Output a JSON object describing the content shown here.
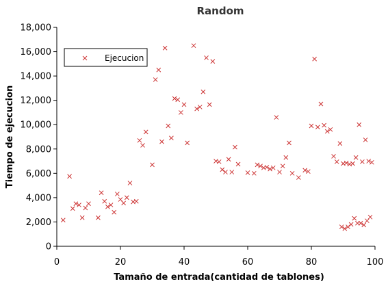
{
  "chart_data": {
    "type": "scatter",
    "title": "Random",
    "xlabel": "Tamaño de entrada(cantidad de tablones)",
    "ylabel": "Tiempo de ejecucion",
    "xlim": [
      0,
      100
    ],
    "ylim": [
      0,
      18000
    ],
    "xticks": [
      0,
      20,
      40,
      60,
      80,
      100
    ],
    "xtick_labels": [
      "0",
      "20",
      "40",
      "60",
      "80",
      "100"
    ],
    "yticks": [
      0,
      2000,
      4000,
      6000,
      8000,
      10000,
      12000,
      14000,
      16000,
      18000
    ],
    "ytick_labels": [
      "0",
      "2,000",
      "4,000",
      "6,000",
      "8,000",
      "10,000",
      "12,000",
      "14,000",
      "16,000",
      "18,000"
    ],
    "grid": false,
    "legend": {
      "position": "top-left"
    },
    "marker": "x",
    "color": "#cc3333",
    "series": [
      {
        "name": "Ejecucion",
        "points": [
          [
            2,
            2150
          ],
          [
            4,
            5750
          ],
          [
            5,
            3100
          ],
          [
            6,
            3500
          ],
          [
            7,
            3400
          ],
          [
            8,
            2350
          ],
          [
            9,
            3150
          ],
          [
            10,
            3500
          ],
          [
            13,
            2350
          ],
          [
            14,
            4400
          ],
          [
            15,
            3700
          ],
          [
            16,
            3250
          ],
          [
            17,
            3400
          ],
          [
            18,
            2800
          ],
          [
            19,
            4300
          ],
          [
            20,
            3850
          ],
          [
            21,
            3550
          ],
          [
            22,
            4000
          ],
          [
            23,
            5200
          ],
          [
            24,
            3650
          ],
          [
            25,
            3700
          ],
          [
            26,
            8700
          ],
          [
            27,
            8300
          ],
          [
            28,
            9400
          ],
          [
            30,
            6700
          ],
          [
            31,
            13700
          ],
          [
            32,
            14500
          ],
          [
            33,
            8600
          ],
          [
            34,
            16300
          ],
          [
            35,
            9900
          ],
          [
            36,
            8900
          ],
          [
            37,
            12150
          ],
          [
            38,
            12050
          ],
          [
            39,
            11000
          ],
          [
            40,
            11650
          ],
          [
            41,
            8500
          ],
          [
            43,
            16500
          ],
          [
            44,
            11300
          ],
          [
            45,
            11450
          ],
          [
            46,
            12700
          ],
          [
            47,
            15500
          ],
          [
            48,
            11650
          ],
          [
            49,
            15200
          ],
          [
            50,
            7000
          ],
          [
            51,
            6950
          ],
          [
            52,
            6300
          ],
          [
            53,
            6100
          ],
          [
            54,
            7150
          ],
          [
            55,
            6100
          ],
          [
            56,
            8150
          ],
          [
            57,
            6750
          ],
          [
            60,
            6050
          ],
          [
            62,
            6000
          ],
          [
            63,
            6700
          ],
          [
            64,
            6600
          ],
          [
            65,
            6450
          ],
          [
            66,
            6500
          ],
          [
            67,
            6350
          ],
          [
            68,
            6450
          ],
          [
            69,
            10600
          ],
          [
            70,
            6100
          ],
          [
            71,
            6600
          ],
          [
            72,
            7300
          ],
          [
            73,
            8500
          ],
          [
            74,
            6000
          ],
          [
            76,
            5650
          ],
          [
            78,
            6250
          ],
          [
            79,
            6150
          ],
          [
            80,
            9900
          ],
          [
            81,
            15400
          ],
          [
            82,
            9800
          ],
          [
            83,
            11700
          ],
          [
            84,
            9950
          ],
          [
            85,
            9450
          ],
          [
            86,
            9600
          ],
          [
            87,
            7400
          ],
          [
            88,
            6950
          ],
          [
            89,
            8450
          ],
          [
            89.5,
            1600
          ],
          [
            90,
            6800
          ],
          [
            90.5,
            1450
          ],
          [
            91,
            6850
          ],
          [
            91.5,
            1600
          ],
          [
            92,
            6750
          ],
          [
            92.5,
            1800
          ],
          [
            93,
            6800
          ],
          [
            93.5,
            2300
          ],
          [
            94,
            7300
          ],
          [
            94.5,
            1900
          ],
          [
            95,
            10000
          ],
          [
            95.5,
            1900
          ],
          [
            96,
            6950
          ],
          [
            96.5,
            1750
          ],
          [
            97,
            8750
          ],
          [
            97.5,
            2100
          ],
          [
            98,
            7000
          ],
          [
            98.5,
            2400
          ],
          [
            99,
            6900
          ]
        ]
      }
    ]
  }
}
